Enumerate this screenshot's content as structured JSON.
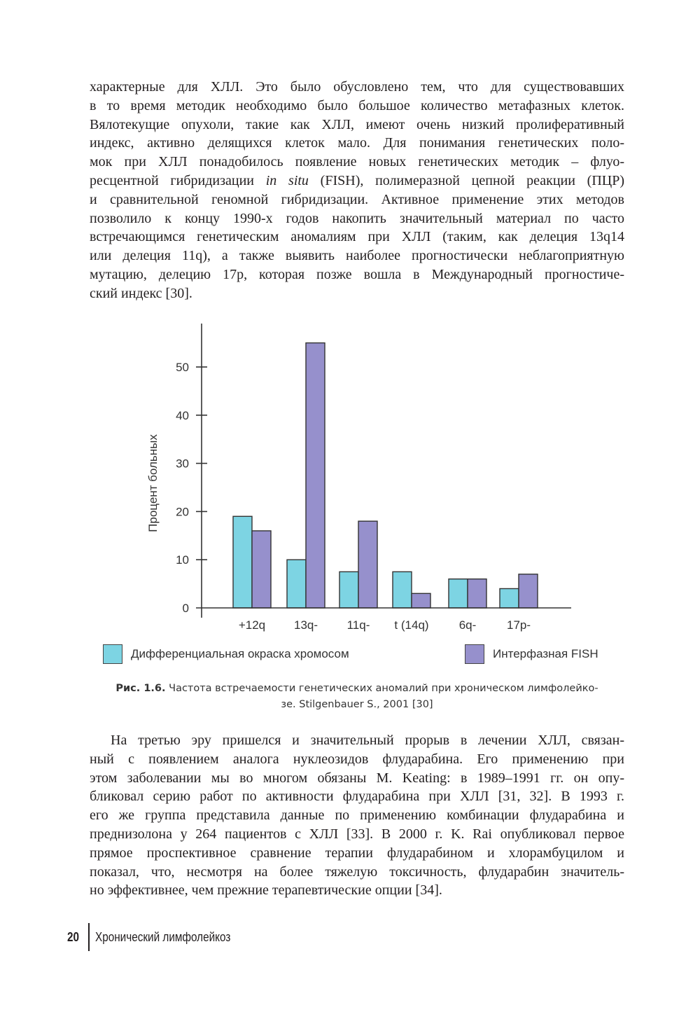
{
  "paragraph1": [
    "характерные для ХЛЛ. Это было обусловлено тем, что для существовавших",
    "в то время методик необходимо было большое количество метафазных клеток.",
    "Вялотекущие опухоли, такие как ХЛЛ, имеют очень низкий пролиферативный",
    "индекс, активно делящихся клеток мало. Для понимания генетических поло-",
    "мок при ХЛЛ понадобилось появление новых генетических методик – флуо-",
    {
      "a": "ресцентной гибридизации ",
      "i": "in situ",
      "b": " (FISH), полимеразной цепной реакции (ПЦР)"
    },
    "и сравнительной геномной гибридизации. Активное применение этих методов",
    "позволило к концу 1990-х годов накопить значительный материал по часто",
    "встречающимся генетическим аномалиям при ХЛЛ (таким, как делеция 13q14",
    "или делеция 11q), а также выявить наиболее прогностически неблагоприятную",
    "мутацию, делецию 17p, которая позже вошла в Международный прогностиче-",
    "ский индекс [30]."
  ],
  "chart_data": {
    "type": "bar",
    "title": "",
    "xlabel": "",
    "ylabel": "Процент больных",
    "ylim": [
      0,
      58
    ],
    "yticks": [
      "0",
      "10",
      "20",
      "30",
      "40",
      "50"
    ],
    "categories": [
      "+12q",
      "13q-",
      "11q-",
      "t (14q)",
      "6q-",
      "17p-"
    ],
    "series": [
      {
        "name": "Дифференциальная окраска хромосом",
        "color": "#7dd4e3",
        "values": [
          19,
          10,
          7.5,
          7.5,
          6,
          4
        ]
      },
      {
        "name": "Интерфазная FISH",
        "color": "#9690cc",
        "values": [
          16,
          55,
          18,
          3,
          6,
          7
        ]
      }
    ],
    "legend_position": "bottom",
    "grid": false
  },
  "caption": {
    "label": "Рис. 1.6.",
    "line1": " Частота встречаемости генетических аномалий при хроническом лимфолейко-",
    "line2": "зе. Stilgenbauer S., 2001 [30]"
  },
  "paragraph2": [
    "На третью эру пришелся и значительный прорыв в лечении ХЛЛ, связан-",
    "ный с появлением аналога нуклеозидов флударабина. Его применению при",
    "этом заболевании мы во многом обязаны M. Keating: в 1989–1991 гг. он опу-",
    "бликовал серию работ по активности флударабина при ХЛЛ [31, 32]. В 1993 г.",
    "его же группа представила данные по применению комбинации флударабина и",
    "преднизолона у 264 пациентов с ХЛЛ [33]. В 2000 г. K. Rai опубликовал первое",
    "прямое проспективное сравнение терапии флударабином и хлорамбуцилом и",
    "показал, что, несмотря на более тяжелую токсичность, флударабин значитель-",
    "но эффективнее, чем прежние терапевтические опции [34]."
  ],
  "footer": {
    "page_number": "20",
    "running_title": "Хронический лимфолейкоз"
  }
}
